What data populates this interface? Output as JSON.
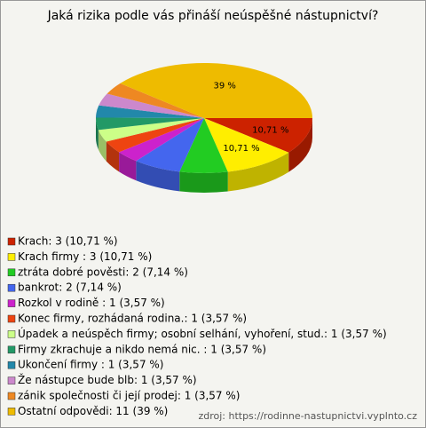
{
  "chart_data": {
    "type": "pie3d",
    "title": "Jaká rizika podle vás přináší neúspěšné nástupnictví?",
    "categories": [
      "Krach: 3 (10,71 %)",
      "Krach firmy : 3 (10,71 %)",
      "ztráta dobré pověsti: 2 (7,14 %)",
      "bankrot: 2 (7,14 %)",
      "Rozkol v rodině : 1 (3,57 %)",
      "Konec firmy, rozhádaná rodina.: 1 (3,57 %)",
      "Úpadek a neúspěch firmy; osobní selhání, vyhoření, stud.: 1 (3,57 %)",
      "Firmy zkrachuje a nikdo nemá nic. : 1 (3,57 %)",
      "Ukončení firmy : 1 (3,57 %)",
      "Že nástupce bude blb: 1 (3,57 %)",
      "zánik společnosti či její prodej: 1 (3,57 %)",
      "Ostatní odpovědi: 11 (39 %)"
    ],
    "values": [
      10.71,
      10.71,
      7.14,
      7.14,
      3.57,
      3.57,
      3.57,
      3.57,
      3.57,
      3.57,
      3.57,
      39
    ],
    "value_labels": [
      "10,71 %",
      "10,71 %",
      null,
      null,
      null,
      null,
      null,
      null,
      null,
      null,
      null,
      "39 %"
    ],
    "colors": [
      "#cc2200",
      "#ffee00",
      "#22cc22",
      "#4466ee",
      "#cc22cc",
      "#ee4411",
      "#ccff88",
      "#229966",
      "#2288aa",
      "#cc88cc",
      "#ee8822",
      "#eebb00"
    ],
    "source": "zdroj: https://rodinne-nastupnictvi.vyplnto.cz"
  }
}
